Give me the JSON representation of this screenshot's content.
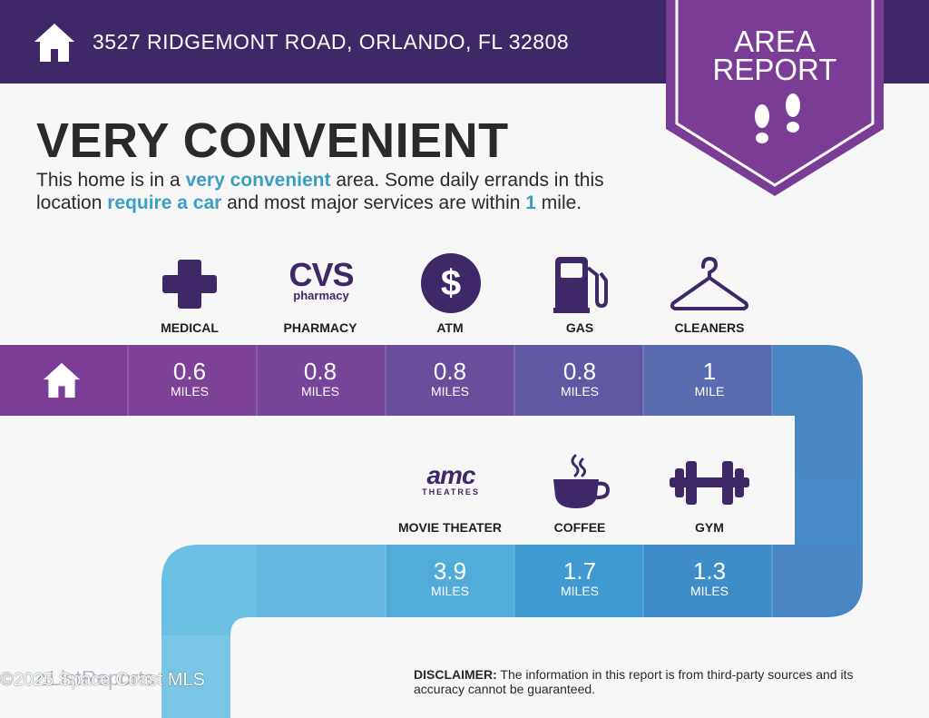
{
  "header": {
    "address": "3527 RIDGEMONT ROAD, ORLANDO, FL 32808"
  },
  "badge": {
    "line1": "AREA",
    "line2": "REPORT"
  },
  "title": "VERY CONVENIENT",
  "description": {
    "p1": "This home is in a ",
    "h1": "very convenient",
    "p2": " area. Some daily errands in this location ",
    "h2": "require a car",
    "p3": " and most major services are within ",
    "h3": "1",
    "p4": " mile."
  },
  "row1": [
    {
      "label": "MEDICAL",
      "value": "0.6",
      "unit": "MILES",
      "icon": "medical-cross-icon"
    },
    {
      "label": "PHARMACY",
      "value": "0.8",
      "unit": "MILES",
      "icon": "cvs-pharmacy-logo",
      "logo_top": "CVS",
      "logo_bottom": "pharmacy"
    },
    {
      "label": "ATM",
      "value": "0.8",
      "unit": "MILES",
      "icon": "dollar-icon",
      "logo_top": "$"
    },
    {
      "label": "GAS",
      "value": "0.8",
      "unit": "MILES",
      "icon": "gas-pump-icon"
    },
    {
      "label": "CLEANERS",
      "value": "1",
      "unit": "MILE",
      "icon": "hanger-icon"
    }
  ],
  "row2": [
    {
      "label": "MOVIE THEATER",
      "value": "3.9",
      "unit": "MILES",
      "icon": "amc-theatres-logo",
      "logo_top": "amc",
      "logo_bottom": "THEATRES"
    },
    {
      "label": "COFFEE",
      "value": "1.7",
      "unit": "MILES",
      "icon": "coffee-cup-icon"
    },
    {
      "label": "GYM",
      "value": "1.3",
      "unit": "MILES",
      "icon": "dumbbell-icon"
    }
  ],
  "disclaimer": {
    "label": "DISCLAIMER:",
    "text": " The information in this report is from third-party sources and its accuracy cannot be guaranteed."
  },
  "footer": {
    "logo_text": "ListReports",
    "watermark": "©2025 Space Coast MLS"
  },
  "colors": {
    "header": "#3e2867",
    "badge": "#7a3c95",
    "row1": [
      "#7a3c95",
      "#7d4298",
      "#6e4a9b",
      "#65539f",
      "#5b6aae",
      "#4f84c2",
      "#4a8fc8"
    ],
    "row2": [
      "#6bbfe3",
      "#66b9e1",
      "#52acd9",
      "#3d9bd1",
      "#3f8dc9",
      "#4a8cc6"
    ]
  }
}
